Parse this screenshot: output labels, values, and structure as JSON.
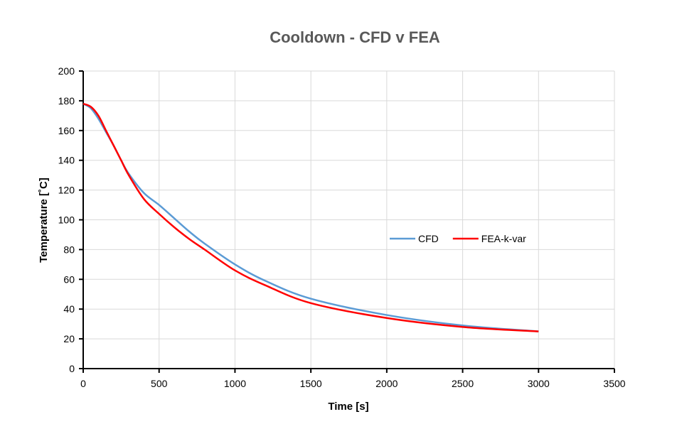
{
  "chart_data": {
    "type": "line",
    "title": "Cooldown - CFD v FEA",
    "xlabel": "Time [s]",
    "ylabel": "Temperature [˚C]",
    "xlim": [
      0,
      3500
    ],
    "ylim": [
      0,
      200
    ],
    "x_ticks": [
      "0",
      "500",
      "1000",
      "1500",
      "2000",
      "2500",
      "3000",
      "3500"
    ],
    "y_ticks": [
      "0",
      "20",
      "40",
      "60",
      "80",
      "100",
      "120",
      "140",
      "160",
      "180",
      "200"
    ],
    "grid": true,
    "legend_position": "right-center",
    "series": [
      {
        "name": "CFD",
        "color": "#5B9BD5",
        "points": [
          [
            0,
            178
          ],
          [
            50,
            175
          ],
          [
            100,
            168
          ],
          [
            150,
            159
          ],
          [
            200,
            150
          ],
          [
            250,
            140
          ],
          [
            300,
            131
          ],
          [
            400,
            118
          ],
          [
            500,
            110
          ],
          [
            600,
            101
          ],
          [
            700,
            92
          ],
          [
            800,
            84
          ],
          [
            1000,
            70
          ],
          [
            1200,
            59
          ],
          [
            1500,
            47
          ],
          [
            2000,
            36
          ],
          [
            2500,
            29
          ],
          [
            3000,
            25
          ]
        ]
      },
      {
        "name": "FEA-k-var",
        "color": "#FF0000",
        "points": [
          [
            0,
            178
          ],
          [
            50,
            176
          ],
          [
            100,
            170
          ],
          [
            150,
            160
          ],
          [
            200,
            150
          ],
          [
            250,
            140
          ],
          [
            300,
            130
          ],
          [
            400,
            114
          ],
          [
            500,
            104
          ],
          [
            600,
            95
          ],
          [
            700,
            87
          ],
          [
            800,
            80
          ],
          [
            1000,
            66
          ],
          [
            1200,
            56
          ],
          [
            1500,
            44
          ],
          [
            2000,
            34
          ],
          [
            2500,
            28
          ],
          [
            3000,
            25
          ]
        ]
      }
    ]
  }
}
